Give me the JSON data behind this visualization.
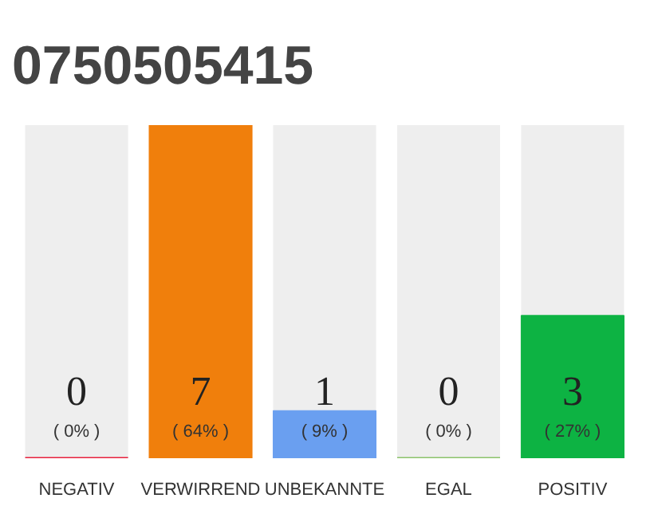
{
  "chart_data": {
    "type": "bar",
    "title": "0750505415",
    "categories": [
      "NEGATIV",
      "VERWIRREND",
      "UNBEKANNTE",
      "EGAL",
      "POSITIV"
    ],
    "series": [
      {
        "colors": [
          "#e8203c",
          "#f07f0c",
          "#6a9ff0",
          "#8bc36a",
          "#0db343"
        ],
        "values": [
          0,
          7,
          1,
          0,
          3
        ],
        "value_labels": [
          "0\n( 0% )",
          "7\n( 64% )",
          "1\n( 9% )",
          "0\n( 0% )",
          "3\n( 27% )"
        ]
      }
    ],
    "grid": false
  }
}
